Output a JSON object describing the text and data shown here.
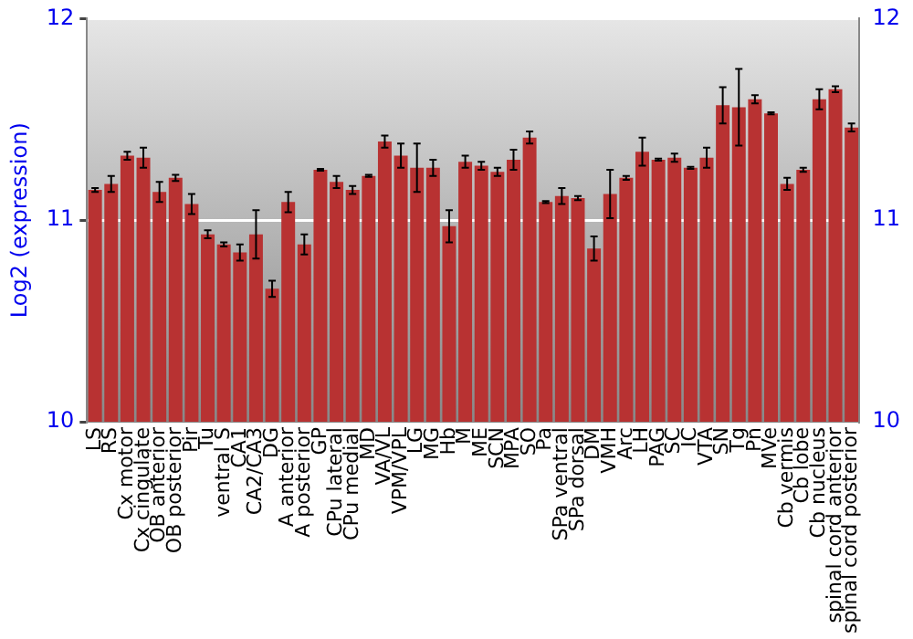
{
  "chart_data": {
    "type": "bar",
    "ylabel": "Log2 (expression)",
    "categories": [
      "LS",
      "RS",
      "Cx motor",
      "Cx cingulate",
      "OB anterior",
      "OB posterior",
      "Pir",
      "Tu",
      "ventral S",
      "CA1",
      "CA2/CA3",
      "DG",
      "A anterior",
      "A posterior",
      "GP",
      "CPu lateral",
      "CPu medial",
      "MD",
      "VA/VL",
      "VPM/VPL",
      "LG",
      "MG",
      "Hb",
      "M",
      "ME",
      "SCN",
      "MPA",
      "SO",
      "Pa",
      "SPa ventral",
      "SPa dorsal",
      "DM",
      "VMH",
      "Arc",
      "LH",
      "PAG",
      "SC",
      "IC",
      "VTA",
      "SN",
      "Tg",
      "Pn",
      "MVe",
      "Cb vermis",
      "Cb lobe",
      "Cb nucleus",
      "spinal cord anterior",
      "spinal cord posterior"
    ],
    "values": [
      11.15,
      11.18,
      11.32,
      11.31,
      11.14,
      11.21,
      11.08,
      10.93,
      10.88,
      10.84,
      10.93,
      10.66,
      11.09,
      10.88,
      11.25,
      11.19,
      11.15,
      11.22,
      11.39,
      11.32,
      11.26,
      11.26,
      10.97,
      11.29,
      11.27,
      11.24,
      11.3,
      11.41,
      11.09,
      11.12,
      11.11,
      10.86,
      11.13,
      11.21,
      11.34,
      11.3,
      11.31,
      11.26,
      11.31,
      11.57,
      11.56,
      11.6,
      11.53,
      11.18,
      11.25,
      11.6,
      11.65,
      11.46
    ],
    "errors": [
      0.01,
      0.04,
      0.02,
      0.05,
      0.05,
      0.015,
      0.05,
      0.02,
      0.01,
      0.04,
      0.12,
      0.04,
      0.05,
      0.05,
      0.005,
      0.03,
      0.02,
      0.005,
      0.03,
      0.06,
      0.12,
      0.04,
      0.08,
      0.03,
      0.02,
      0.02,
      0.05,
      0.03,
      0.005,
      0.04,
      0.01,
      0.06,
      0.12,
      0.01,
      0.07,
      0.005,
      0.02,
      0.005,
      0.05,
      0.09,
      0.19,
      0.02,
      0.005,
      0.03,
      0.01,
      0.05,
      0.015,
      0.02
    ],
    "color": "#b83232",
    "ylim": [
      10,
      12
    ],
    "yticks": [
      10,
      11,
      12
    ],
    "y2lim": [
      10,
      12
    ],
    "y2ticks": [
      10,
      11,
      12
    ],
    "grid": "y"
  }
}
